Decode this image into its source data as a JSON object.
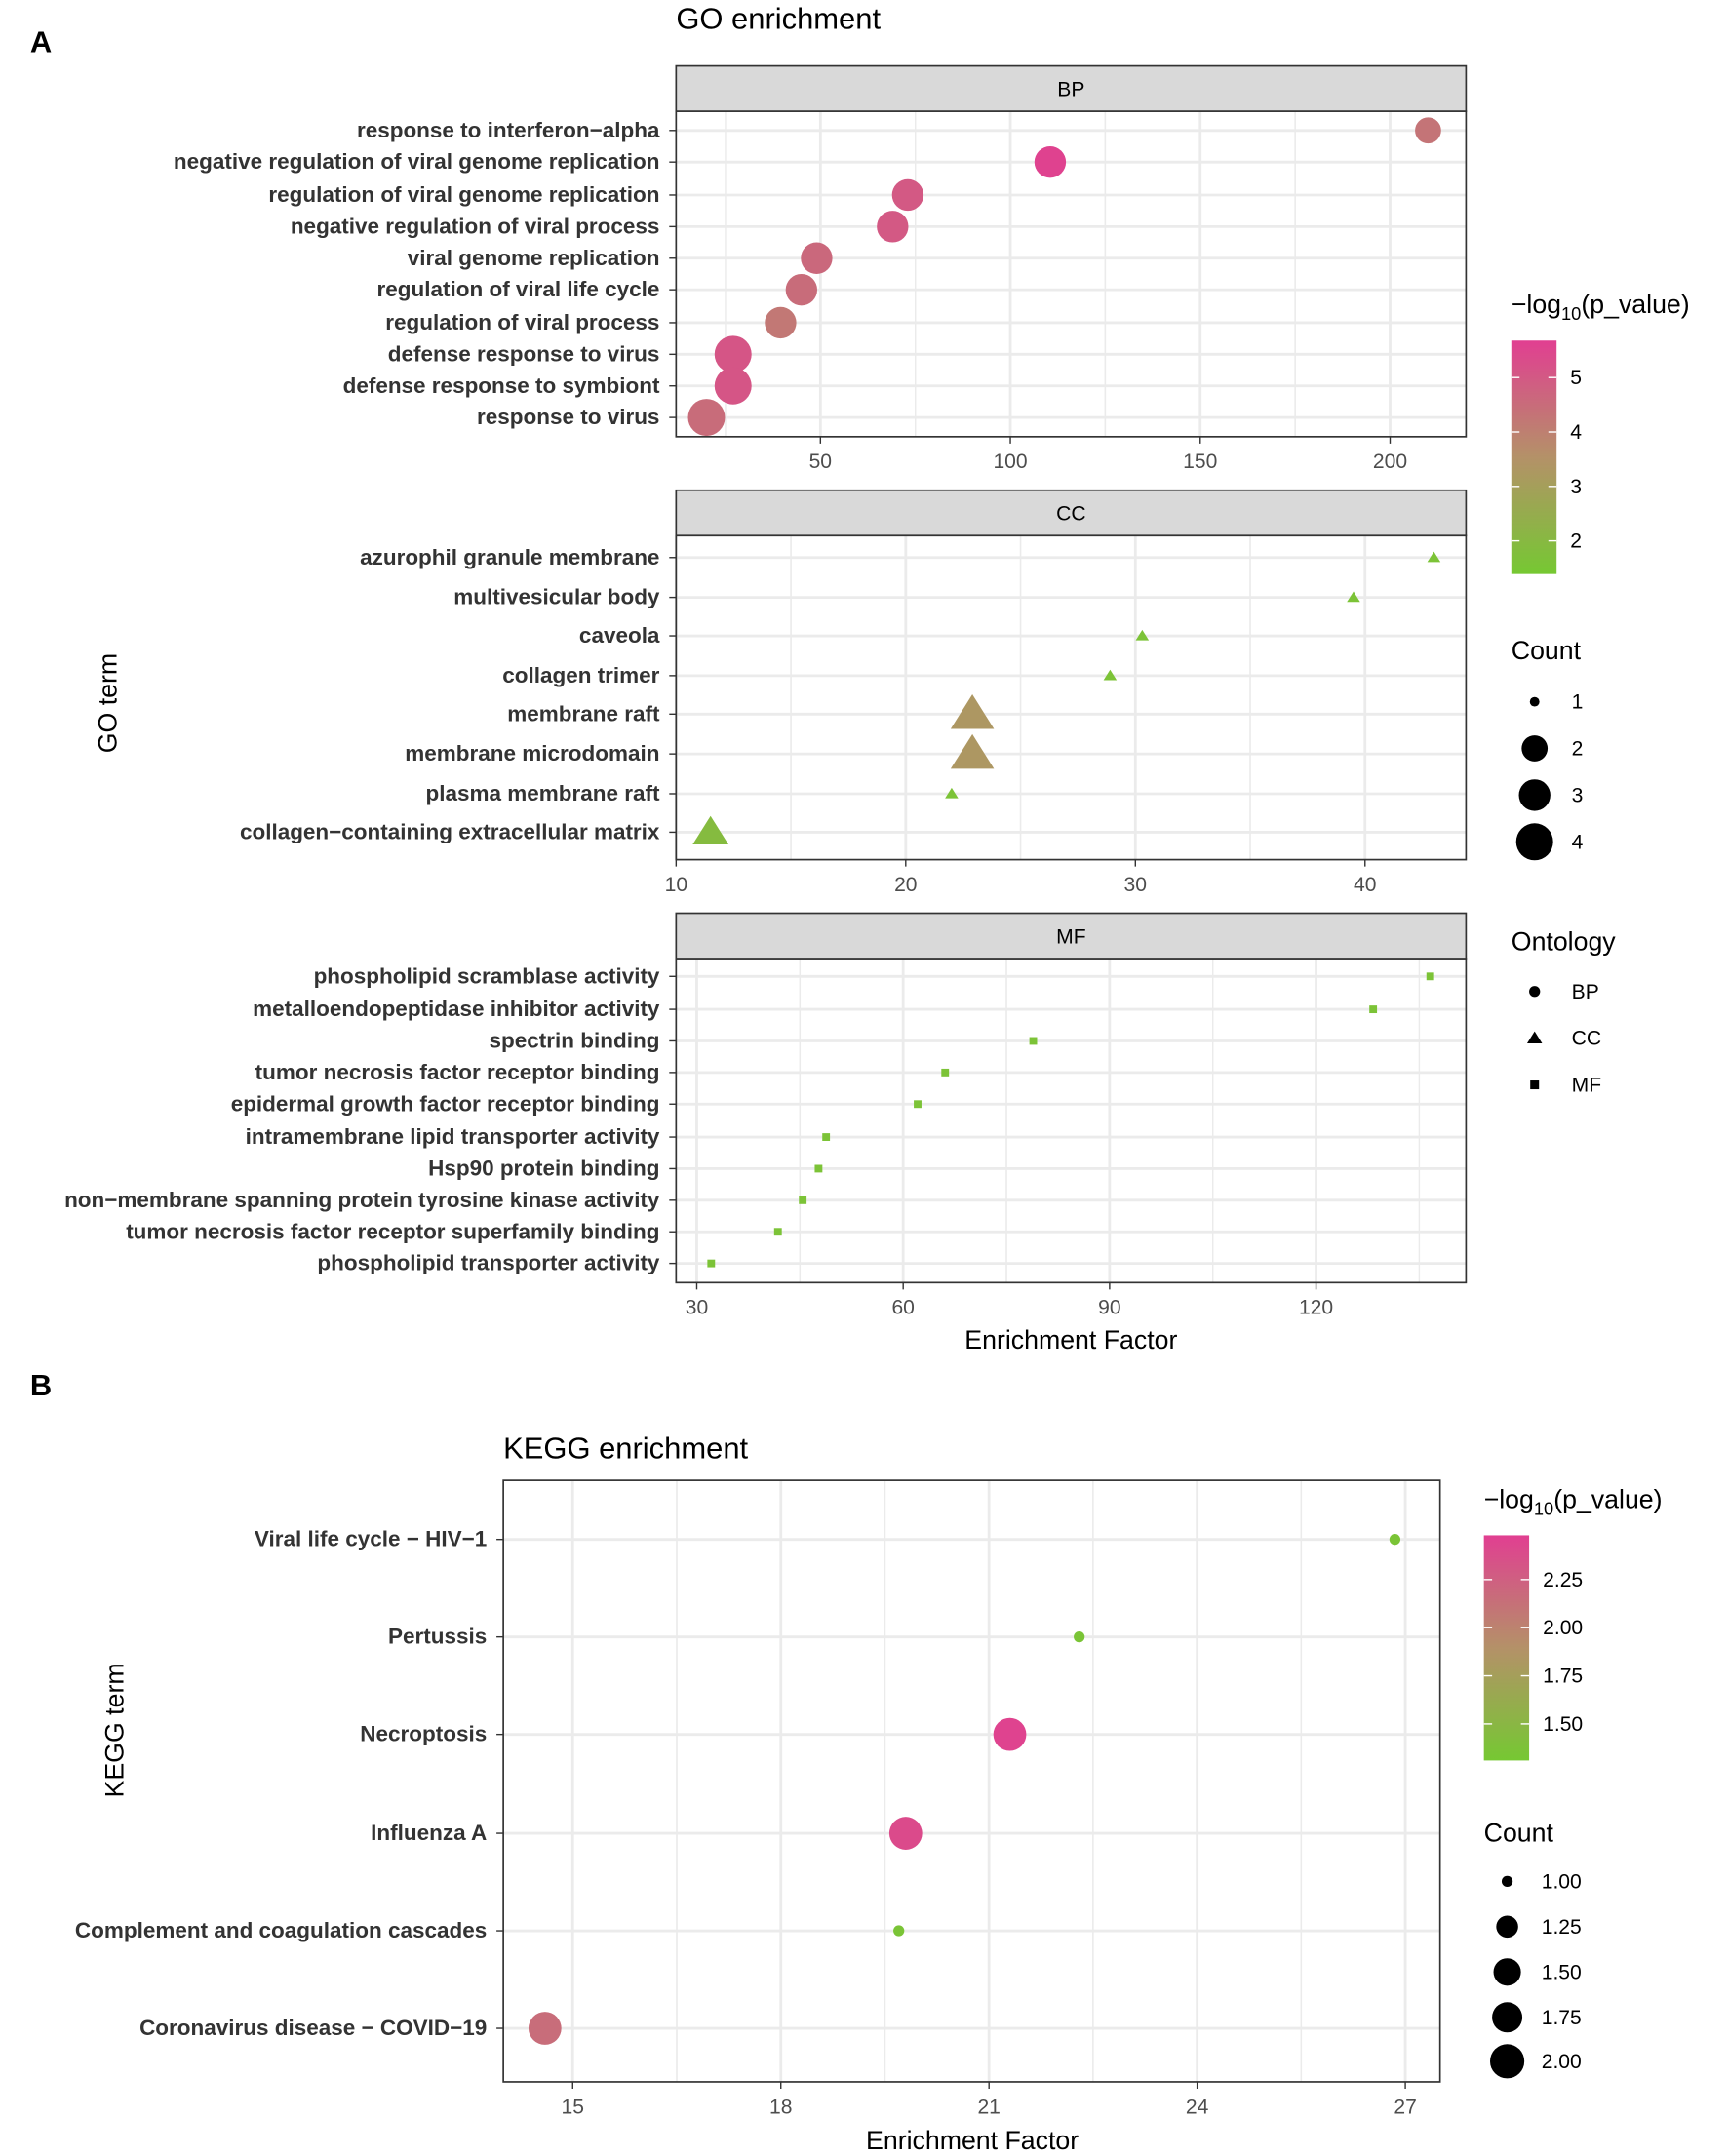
{
  "chart_data": [
    {
      "type": "scatter",
      "panel_letter": "A",
      "title": "GO enrichment",
      "xlabel": "Enrichment Factor",
      "ylabel": "GO term",
      "color_legend": {
        "title_prefix": "−log",
        "title_sub": "10",
        "title_suffix": "(p_value)",
        "range": [
          1.39,
          5.68
        ],
        "ticks": [
          "5",
          "4",
          "3",
          "2"
        ],
        "tick_values": [
          5,
          4,
          3,
          2
        ]
      },
      "size_legend": {
        "title": "Count",
        "labels": [
          "1",
          "2",
          "3",
          "4"
        ],
        "values": [
          1,
          2,
          3,
          4
        ]
      },
      "shape_legend": {
        "title": "Ontology",
        "labels": [
          "BP",
          "CC",
          "MF"
        ],
        "shapes": [
          "circle",
          "triangle",
          "square"
        ]
      },
      "facets": [
        {
          "name": "BP",
          "shape": "circle",
          "xlim": [
            12,
            220
          ],
          "xticks": [
            50,
            100,
            150,
            200
          ],
          "xtick_labels": [
            "50",
            "100",
            "150",
            "200"
          ],
          "terms": [
            "response to interferon−alpha",
            "negative regulation of viral genome replication",
            "regulation of viral genome replication",
            "negative regulation of viral process",
            "viral genome replication",
            "regulation of viral life cycle",
            "regulation of viral process",
            "defense response to virus",
            "defense response to symbiont",
            "response to virus"
          ],
          "x": [
            210,
            110.5,
            73,
            69,
            49,
            45,
            39.5,
            27,
            27,
            20
          ],
          "count": [
            2,
            3,
            3,
            3,
            3,
            3,
            3,
            4,
            4,
            4
          ],
          "neglog10p": [
            4.3,
            5.6,
            5.0,
            5.0,
            4.6,
            4.5,
            4.2,
            5.1,
            5.1,
            4.5
          ]
        },
        {
          "name": "CC",
          "shape": "triangle",
          "xlim": [
            10,
            44.4
          ],
          "xticks": [
            10,
            20,
            30,
            40
          ],
          "xtick_labels": [
            "10",
            "20",
            "30",
            "40"
          ],
          "terms": [
            "azurophil granule membrane",
            "multivesicular body",
            "caveola",
            "collagen trimer",
            "membrane raft",
            "membrane microdomain",
            "plasma membrane raft",
            "collagen−containing extracellular matrix"
          ],
          "x": [
            43,
            39.5,
            30.3,
            28.9,
            22.9,
            22.9,
            22.0,
            11.5
          ],
          "count": [
            1,
            1,
            1,
            1,
            3,
            3,
            1,
            2
          ],
          "neglog10p": [
            1.6,
            1.6,
            1.6,
            1.6,
            3.3,
            3.3,
            1.6,
            1.9
          ]
        },
        {
          "name": "MF",
          "shape": "square",
          "xlim": [
            27,
            141.8
          ],
          "xticks": [
            30,
            60,
            90,
            120
          ],
          "xtick_labels": [
            "30",
            "60",
            "90",
            "120"
          ],
          "terms": [
            "phospholipid scramblase activity",
            "metalloendopeptidase inhibitor activity",
            "spectrin binding",
            "tumor necrosis factor receptor binding",
            "epidermal growth factor receptor binding",
            "intramembrane lipid transporter activity",
            "Hsp90 protein binding",
            "non−membrane spanning protein tyrosine kinase activity",
            "tumor necrosis factor receptor superfamily binding",
            "phospholipid transporter activity"
          ],
          "x": [
            136.6,
            128.3,
            78.9,
            66.1,
            62.1,
            48.8,
            47.7,
            45.4,
            41.8,
            32.1
          ],
          "count": [
            1,
            1,
            1,
            1,
            1,
            1,
            1,
            1,
            1,
            1
          ],
          "neglog10p": [
            1.6,
            1.6,
            1.6,
            1.6,
            1.6,
            1.6,
            1.6,
            1.6,
            1.6,
            1.6
          ]
        }
      ]
    },
    {
      "type": "scatter",
      "panel_letter": "B",
      "title": "KEGG enrichment",
      "xlabel": "Enrichment Factor",
      "ylabel": "KEGG term",
      "xlim": [
        14,
        27.5
      ],
      "xticks": [
        15,
        18,
        21,
        24,
        27
      ],
      "xtick_labels": [
        "15",
        "18",
        "21",
        "24",
        "27"
      ],
      "terms": [
        "Viral life cycle − HIV−1",
        "Pertussis",
        "Necroptosis",
        "Influenza A",
        "Complement and coagulation cascades",
        "Coronavirus disease − COVID−19"
      ],
      "x": [
        26.85,
        22.3,
        21.3,
        19.8,
        19.7,
        14.6
      ],
      "count": [
        1,
        1,
        2,
        2,
        1,
        2
      ],
      "neglog10p": [
        1.35,
        1.35,
        2.45,
        2.4,
        1.35,
        2.15
      ],
      "color_legend": {
        "title_prefix": "−log",
        "title_sub": "10",
        "title_suffix": "(p_value)",
        "range": [
          1.31,
          2.48
        ],
        "ticks": [
          "2.25",
          "2.00",
          "1.75",
          "1.50"
        ],
        "tick_values": [
          2.25,
          2.0,
          1.75,
          1.5
        ]
      },
      "size_legend": {
        "title": "Count",
        "labels": [
          "1.00",
          "1.25",
          "1.50",
          "1.75",
          "2.00"
        ],
        "values": [
          1,
          1.25,
          1.5,
          1.75,
          2
        ]
      }
    }
  ],
  "colors": {
    "low": "#76c832",
    "mid": "#b49168",
    "high": "#e13f91",
    "strip": "#d9d9d9",
    "grid": "#ebebeb"
  }
}
